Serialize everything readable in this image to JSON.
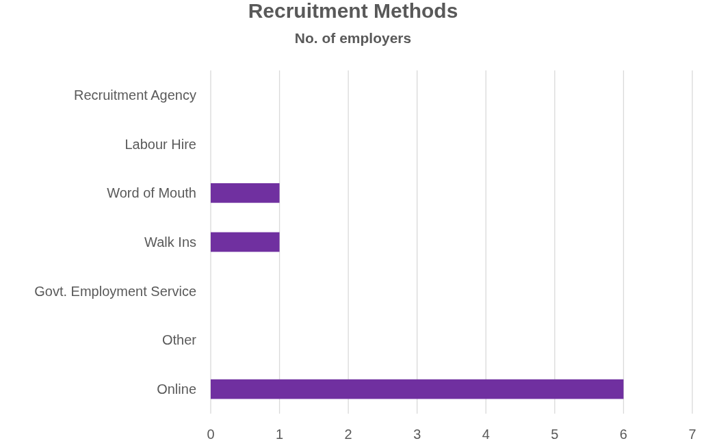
{
  "chart_data": {
    "type": "bar",
    "orientation": "horizontal",
    "title": "Recruitment Methods",
    "subtitle": "No. of employers",
    "categories": [
      "Recruitment Agency",
      "Labour Hire",
      "Word of Mouth",
      "Walk Ins",
      "Govt. Employment Service",
      "Other",
      "Online"
    ],
    "values": [
      0,
      0,
      1,
      1,
      0,
      0,
      6
    ],
    "color": "#7030a0",
    "xlim": [
      0,
      7
    ],
    "xticks": [
      0,
      1,
      2,
      3,
      4,
      5,
      6,
      7
    ],
    "grid": "x"
  }
}
